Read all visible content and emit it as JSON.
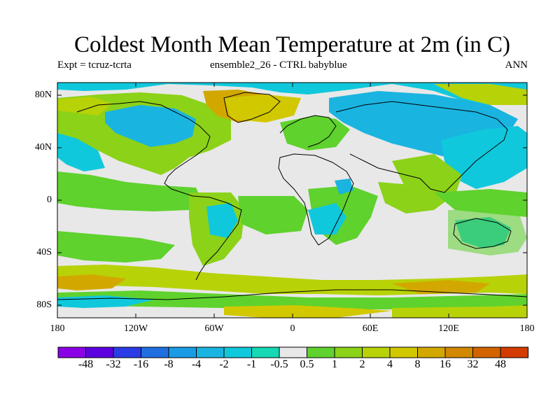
{
  "title": "Coldest Month Mean Temperature at 2m (in C)",
  "subtitle_left": "Expt = tcruz-tcrta",
  "subtitle_center": "ensemble2_26 - CTRL babyblue",
  "subtitle_right": "ANN",
  "lat_labels": [
    {
      "text": "80N",
      "lat": 80
    },
    {
      "text": "40N",
      "lat": 40
    },
    {
      "text": "0",
      "lat": 0
    },
    {
      "text": "40S",
      "lat": -40
    },
    {
      "text": "80S",
      "lat": -80
    }
  ],
  "lon_labels": [
    {
      "text": "180",
      "lon": -180
    },
    {
      "text": "120W",
      "lon": -120
    },
    {
      "text": "60W",
      "lon": -60
    },
    {
      "text": "0",
      "lon": 0
    },
    {
      "text": "60E",
      "lon": 60
    },
    {
      "text": "120E",
      "lon": 120
    },
    {
      "text": "180",
      "lon": 180
    }
  ],
  "colorbar": {
    "colors": [
      "#8a00e6",
      "#5c00e0",
      "#2b3ce6",
      "#1f6fe0",
      "#1a9be6",
      "#1ab4e0",
      "#10c8dc",
      "#16d8b4",
      "#e8e8e8",
      "#5fd22d",
      "#8cd218",
      "#b8d208",
      "#d2c800",
      "#d2a800",
      "#d28800",
      "#d26400",
      "#d23c00"
    ],
    "labels": [
      "-48",
      "-32",
      "-16",
      "-8",
      "-4",
      "-2",
      "-1",
      "-0.5",
      "0.5",
      "1",
      "2",
      "4",
      "8",
      "16",
      "32",
      "48"
    ]
  },
  "regions": {
    "neutral": "#e8e8e8",
    "pos_small": "#5fd22d",
    "pos_mid": "#8cd218",
    "pos_high": "#b8d208",
    "pos_higher": "#d2c800",
    "pos_top": "#d2a800",
    "neg_small": "#10c8dc",
    "neg_mid": "#1ab4e0",
    "neg_high": "#16d8b4"
  }
}
